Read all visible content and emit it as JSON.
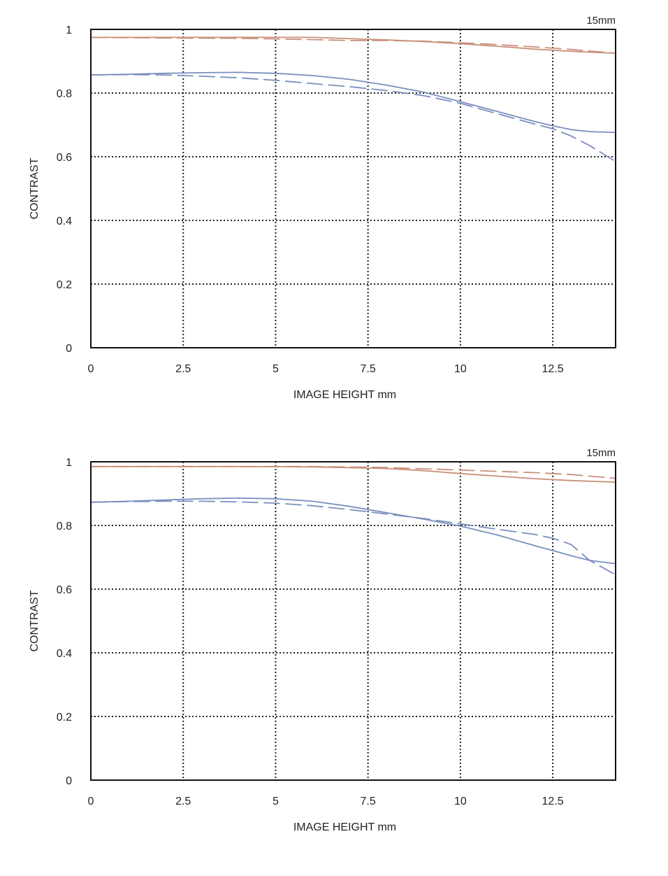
{
  "chart_data": [
    {
      "type": "line",
      "title": "15mm",
      "xlabel": "IMAGE HEIGHT  mm",
      "ylabel": "CONTRAST",
      "xlim": [
        0,
        14.2
      ],
      "ylim": [
        0,
        1
      ],
      "xticks": [
        0,
        2.5,
        5,
        7.5,
        10,
        12.5
      ],
      "xtick_labels": [
        "0",
        "2.5",
        "5",
        "7.5",
        "10",
        "12.5"
      ],
      "yticks": [
        0,
        0.2,
        0.4,
        0.6,
        0.8,
        1
      ],
      "ytick_labels": [
        "0",
        "0.2",
        "0.4",
        "0.6",
        "0.8",
        "1"
      ],
      "grid": true,
      "series": [
        {
          "color": "#c9907a",
          "style": "solid",
          "x": [
            0,
            2,
            4,
            6,
            8,
            9,
            10,
            11,
            12,
            13,
            14.2
          ],
          "y": [
            0.975,
            0.975,
            0.975,
            0.975,
            0.967,
            0.962,
            0.955,
            0.947,
            0.938,
            0.931,
            0.925
          ]
        },
        {
          "color": "#c9907a",
          "style": "dashed",
          "x": [
            0,
            2,
            4,
            6,
            7,
            8,
            9,
            10,
            11,
            12,
            13,
            14.2
          ],
          "y": [
            0.975,
            0.973,
            0.972,
            0.968,
            0.965,
            0.965,
            0.963,
            0.958,
            0.952,
            0.945,
            0.937,
            0.925
          ]
        },
        {
          "color": "#7a8fbf",
          "style": "solid",
          "x": [
            0,
            1,
            2,
            3,
            4,
            5,
            6,
            7,
            8,
            9,
            10,
            11,
            12,
            12.5,
            13,
            13.5,
            14.2
          ],
          "y": [
            0.857,
            0.859,
            0.862,
            0.864,
            0.865,
            0.862,
            0.855,
            0.843,
            0.825,
            0.803,
            0.773,
            0.742,
            0.711,
            0.697,
            0.685,
            0.679,
            0.676
          ]
        },
        {
          "color": "#7a8fbf",
          "style": "dashed",
          "x": [
            0,
            1,
            2,
            3,
            4,
            5,
            6,
            7,
            8,
            9,
            10,
            11,
            12,
            12.5,
            13,
            13.5,
            14.2
          ],
          "y": [
            0.857,
            0.858,
            0.857,
            0.853,
            0.848,
            0.84,
            0.83,
            0.82,
            0.808,
            0.792,
            0.768,
            0.735,
            0.703,
            0.688,
            0.665,
            0.635,
            0.585
          ]
        }
      ]
    },
    {
      "type": "line",
      "title": "15mm",
      "xlabel": "IMAGE HEIGHT  mm",
      "ylabel": "CONTRAST",
      "xlim": [
        0,
        14.2
      ],
      "ylim": [
        0,
        1
      ],
      "xticks": [
        0,
        2.5,
        5,
        7.5,
        10,
        12.5
      ],
      "xtick_labels": [
        "0",
        "2.5",
        "5",
        "7.5",
        "10",
        "12.5"
      ],
      "yticks": [
        0,
        0.2,
        0.4,
        0.6,
        0.8,
        1
      ],
      "ytick_labels": [
        "0",
        "0.2",
        "0.4",
        "0.6",
        "0.8",
        "1"
      ],
      "grid": true,
      "series": [
        {
          "color": "#c9907a",
          "style": "solid",
          "x": [
            0,
            2,
            4,
            6,
            8,
            9,
            10,
            11,
            12,
            13,
            14.2
          ],
          "y": [
            0.985,
            0.985,
            0.985,
            0.984,
            0.979,
            0.972,
            0.963,
            0.955,
            0.947,
            0.941,
            0.936
          ]
        },
        {
          "color": "#c9907a",
          "style": "dashed",
          "x": [
            0,
            2,
            4,
            6,
            8,
            9,
            10,
            11,
            12,
            13,
            14.2
          ],
          "y": [
            0.985,
            0.985,
            0.985,
            0.985,
            0.982,
            0.978,
            0.974,
            0.97,
            0.966,
            0.96,
            0.948
          ]
        },
        {
          "color": "#7a8fbf",
          "style": "solid",
          "x": [
            0,
            1,
            2,
            3,
            4,
            5,
            6,
            7,
            8,
            9,
            10,
            11,
            12,
            12.5,
            13,
            13.5,
            14.2
          ],
          "y": [
            0.873,
            0.876,
            0.88,
            0.884,
            0.886,
            0.884,
            0.876,
            0.86,
            0.84,
            0.82,
            0.798,
            0.77,
            0.737,
            0.721,
            0.705,
            0.69,
            0.68
          ]
        },
        {
          "color": "#7a8fbf",
          "style": "dashed",
          "x": [
            0,
            1,
            2,
            3,
            4,
            5,
            6,
            7,
            8,
            9,
            10,
            11,
            12,
            12.5,
            13,
            13.5,
            14.2
          ],
          "y": [
            0.873,
            0.875,
            0.876,
            0.876,
            0.874,
            0.87,
            0.862,
            0.85,
            0.836,
            0.822,
            0.805,
            0.788,
            0.772,
            0.76,
            0.74,
            0.69,
            0.645
          ]
        }
      ]
    }
  ]
}
